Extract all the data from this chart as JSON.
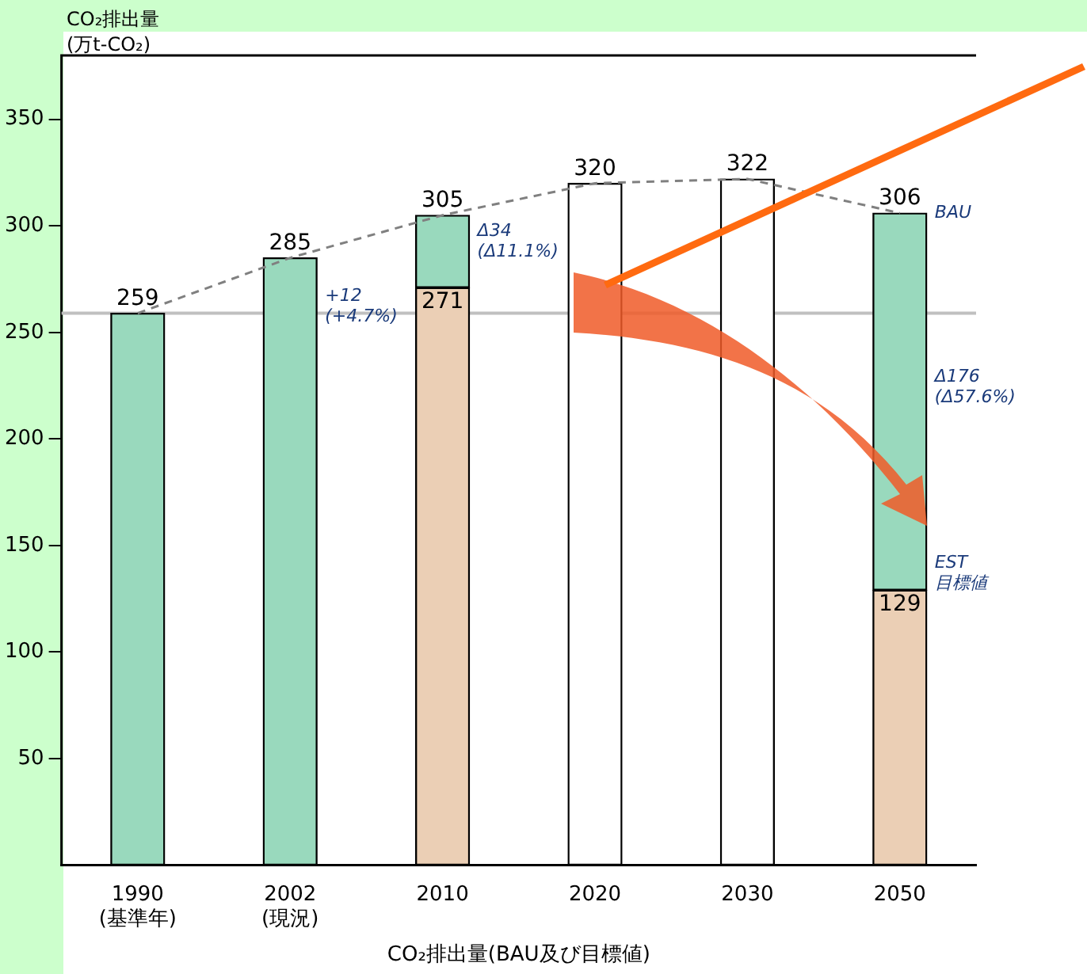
{
  "chart_data": {
    "type": "bar",
    "stacked": true,
    "ylabel": "CO₂排出量\n(万t-CO₂)",
    "xlabel": "CO₂排出量(BAU及び目標値)",
    "categories": [
      "1990\n(基準年)",
      "2002\n(現況)",
      "2010",
      "2020",
      "2030",
      "2050"
    ],
    "ylim": [
      0,
      380
    ],
    "yticks": [
      50,
      100,
      150,
      200,
      250,
      300,
      350
    ],
    "grid": false,
    "legend": false,
    "series": [
      {
        "values": [
          259,
          285,
          271,
          320,
          322,
          129
        ],
        "colors": [
          "#99d9bd",
          "#99d9bd",
          "#ebcfb5",
          "#ffffff",
          "#ffffff",
          "#ebcfb5"
        ],
        "value_labels": [
          "259",
          "285",
          "271",
          "320",
          "322",
          "129"
        ]
      },
      {
        "values": [
          null,
          null,
          34,
          null,
          null,
          177
        ],
        "colors": [
          "#99d9bd",
          "#99d9bd",
          "#99d9bd",
          "#99d9bd",
          "#99d9bd",
          "#99d9bd"
        ],
        "value_labels": [
          null,
          null,
          null,
          null,
          null,
          null
        ]
      },
      {
        "type": "line",
        "color": "#808080",
        "line_style": "dashed",
        "values": [
          259,
          285,
          305,
          320,
          322,
          306
        ]
      }
    ],
    "ref_lines": [
      {
        "axis": "y",
        "value": 259,
        "color": "#c0c0c0"
      }
    ],
    "annotations": [
      "+12\n(+4.7%)",
      "Δ34\n(Δ11.1%)",
      "Δ176\n(Δ57.6%)",
      "BAU",
      "EST\n目標値",
      {
        "text": "305",
        "x": "2010",
        "y": 305
      },
      {
        "text": "306",
        "x": "2050",
        "y": 306
      }
    ]
  }
}
